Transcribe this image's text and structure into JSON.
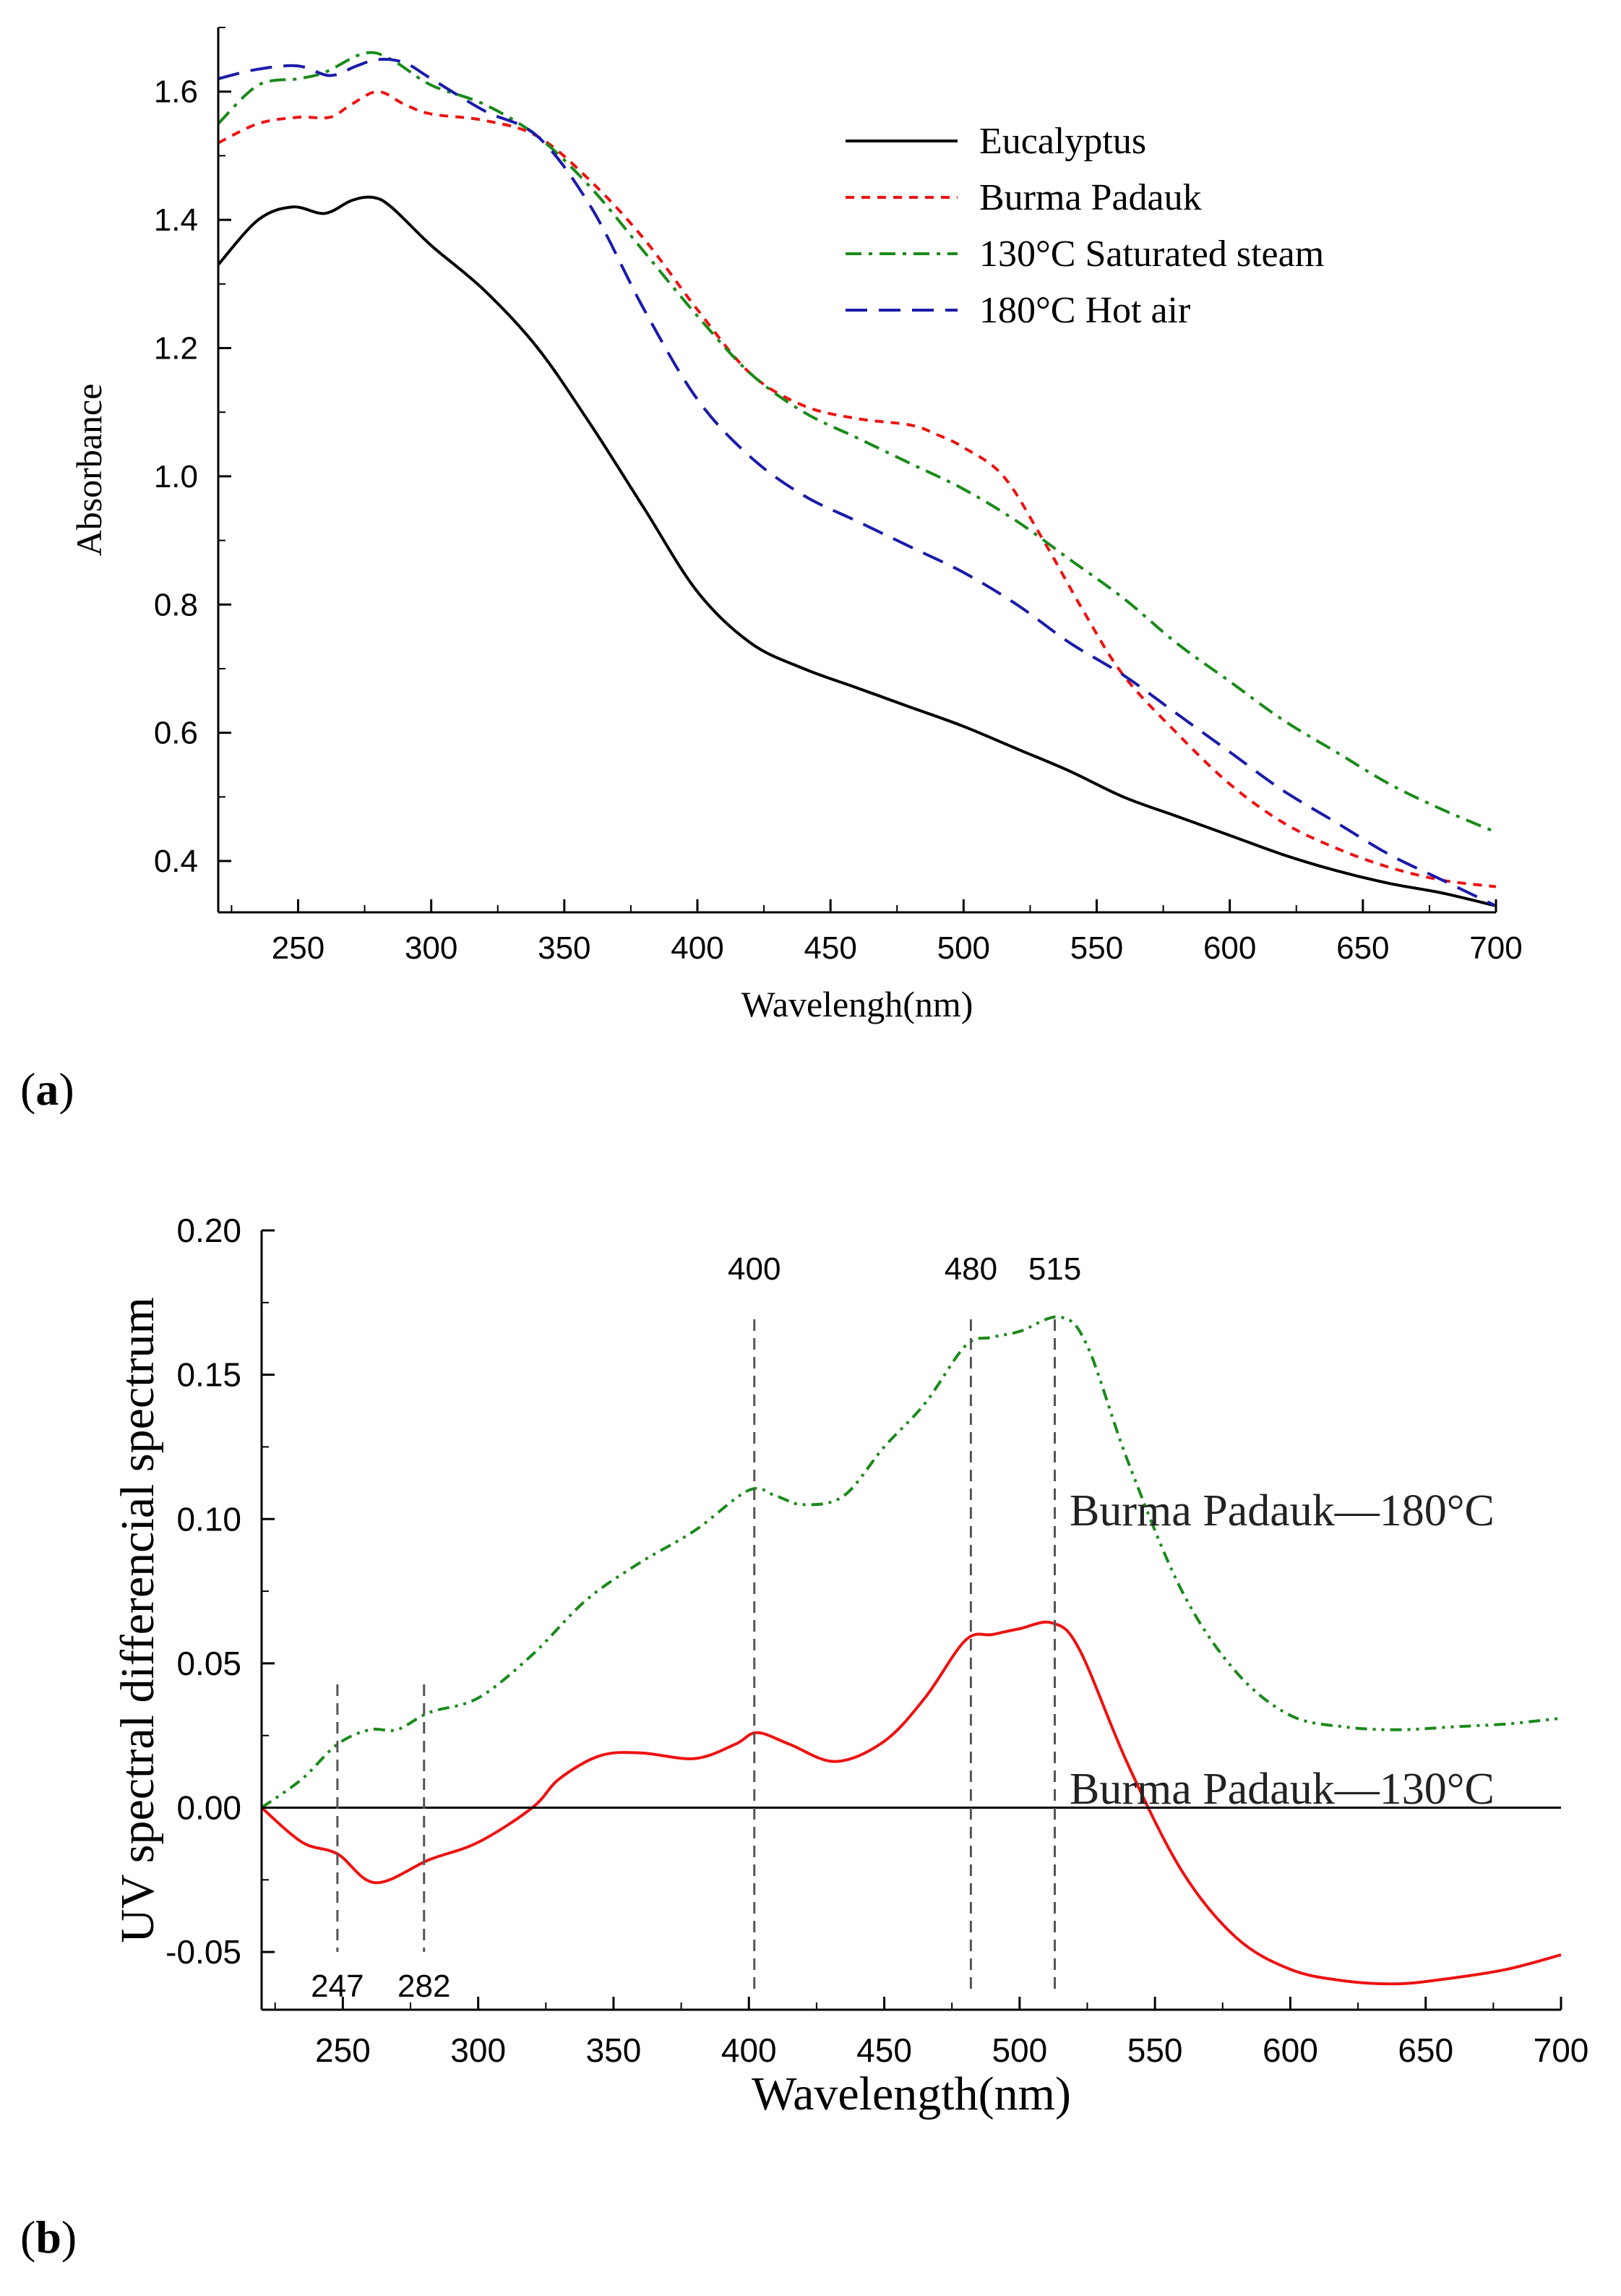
{
  "chart_data": [
    {
      "type": "line",
      "panel_label": "a",
      "xlabel": "Wavelengh(nm)",
      "ylabel": "Absorbance",
      "xlim": [
        220,
        700
      ],
      "ylim": [
        0.32,
        1.7
      ],
      "xticks": [
        250,
        300,
        350,
        400,
        450,
        500,
        550,
        600,
        650,
        700
      ],
      "yticks": [
        0.4,
        0.6,
        0.8,
        1.0,
        1.2,
        1.4,
        1.6
      ],
      "ytick_labels": [
        "0.4",
        "0.6",
        "0.8",
        "1.0",
        "1.2",
        "1.4",
        "1.6"
      ],
      "legend_position": "top-right",
      "series": [
        {
          "name": "Eucalyptus",
          "color": "#000000",
          "dash": "solid",
          "x": [
            220,
            235,
            248,
            260,
            270,
            278,
            285,
            300,
            320,
            340,
            360,
            380,
            400,
            420,
            440,
            460,
            480,
            500,
            520,
            540,
            560,
            580,
            600,
            620,
            640,
            660,
            680,
            700
          ],
          "y": [
            1.33,
            1.4,
            1.42,
            1.41,
            1.43,
            1.435,
            1.42,
            1.36,
            1.29,
            1.2,
            1.08,
            0.95,
            0.82,
            0.74,
            0.7,
            0.67,
            0.64,
            0.61,
            0.575,
            0.54,
            0.5,
            0.47,
            0.44,
            0.41,
            0.385,
            0.365,
            0.35,
            0.33
          ]
        },
        {
          "name": "Burma Padauk",
          "color": "#ee1111",
          "dash": "short-dash",
          "x": [
            220,
            235,
            250,
            262,
            270,
            280,
            290,
            300,
            320,
            340,
            360,
            380,
            400,
            420,
            440,
            460,
            480,
            490,
            500,
            515,
            530,
            545,
            560,
            580,
            600,
            620,
            640,
            660,
            680,
            700
          ],
          "y": [
            1.52,
            1.55,
            1.56,
            1.56,
            1.58,
            1.6,
            1.58,
            1.565,
            1.555,
            1.53,
            1.46,
            1.37,
            1.26,
            1.16,
            1.11,
            1.09,
            1.08,
            1.065,
            1.045,
            1.0,
            0.9,
            0.79,
            0.69,
            0.6,
            0.52,
            0.46,
            0.42,
            0.39,
            0.37,
            0.36
          ]
        },
        {
          "name": "130°C Saturated steam",
          "color": "#1a8a1a",
          "dash": "dash-dot",
          "x": [
            220,
            235,
            250,
            260,
            275,
            285,
            300,
            320,
            340,
            360,
            380,
            400,
            420,
            440,
            460,
            480,
            500,
            520,
            540,
            560,
            580,
            600,
            620,
            640,
            660,
            680,
            700
          ],
          "y": [
            1.55,
            1.61,
            1.62,
            1.63,
            1.66,
            1.65,
            1.61,
            1.58,
            1.53,
            1.45,
            1.35,
            1.25,
            1.16,
            1.1,
            1.06,
            1.02,
            0.98,
            0.93,
            0.87,
            0.81,
            0.74,
            0.68,
            0.62,
            0.57,
            0.52,
            0.48,
            0.445
          ]
        },
        {
          "name": "180°C Hot air",
          "color": "#1a1aaa",
          "dash": "long-dash",
          "x": [
            220,
            235,
            250,
            262,
            272,
            280,
            290,
            300,
            320,
            340,
            360,
            380,
            400,
            420,
            440,
            460,
            480,
            500,
            520,
            540,
            560,
            580,
            600,
            620,
            640,
            660,
            680,
            700
          ],
          "y": [
            1.62,
            1.635,
            1.64,
            1.625,
            1.64,
            1.65,
            1.645,
            1.62,
            1.57,
            1.53,
            1.42,
            1.26,
            1.12,
            1.03,
            0.97,
            0.93,
            0.89,
            0.85,
            0.8,
            0.74,
            0.69,
            0.63,
            0.57,
            0.51,
            0.46,
            0.41,
            0.37,
            0.33
          ]
        }
      ]
    },
    {
      "type": "line",
      "panel_label": "b",
      "xlabel": "Wavelength(nm)",
      "ylabel": "UV spectral differencial spectrum",
      "xlim": [
        220,
        700
      ],
      "ylim": [
        -0.07,
        0.2
      ],
      "xticks": [
        250,
        300,
        350,
        400,
        450,
        500,
        550,
        600,
        650,
        700
      ],
      "yticks": [
        -0.05,
        0.0,
        0.05,
        0.1,
        0.15,
        0.2
      ],
      "ytick_labels": [
        "-0.05",
        "0.00",
        "0.05",
        "0.10",
        "0.15",
        "0.20"
      ],
      "zero_line": true,
      "series": [
        {
          "name": "Burma Padauk—180°C",
          "color": "#1a8a1a",
          "dash": "dash-dot-dot",
          "x": [
            220,
            235,
            248,
            260,
            270,
            282,
            300,
            320,
            340,
            360,
            380,
            400,
            410,
            420,
            435,
            450,
            465,
            480,
            490,
            500,
            515,
            525,
            540,
            560,
            580,
            600,
            620,
            640,
            660,
            680,
            700
          ],
          "y": [
            0.0,
            0.01,
            0.022,
            0.027,
            0.027,
            0.033,
            0.038,
            0.053,
            0.072,
            0.085,
            0.096,
            0.11,
            0.108,
            0.105,
            0.108,
            0.125,
            0.14,
            0.16,
            0.163,
            0.165,
            0.17,
            0.16,
            0.12,
            0.075,
            0.047,
            0.032,
            0.028,
            0.027,
            0.028,
            0.029,
            0.031
          ]
        },
        {
          "name": "Burma Padauk—130°C",
          "color": "#ee1111",
          "dash": "solid",
          "x": [
            220,
            235,
            248,
            262,
            282,
            300,
            320,
            330,
            345,
            360,
            380,
            395,
            403,
            415,
            432,
            450,
            465,
            480,
            490,
            500,
            512,
            522,
            540,
            560,
            580,
            600,
            620,
            640,
            660,
            680,
            700
          ],
          "y": [
            0.0,
            -0.012,
            -0.016,
            -0.026,
            -0.018,
            -0.012,
            0.0,
            0.01,
            0.018,
            0.019,
            0.017,
            0.022,
            0.026,
            0.022,
            0.016,
            0.023,
            0.038,
            0.058,
            0.06,
            0.062,
            0.064,
            0.055,
            0.015,
            -0.022,
            -0.045,
            -0.056,
            -0.06,
            -0.061,
            -0.059,
            -0.056,
            -0.051
          ]
        }
      ],
      "annotations": {
        "upper_labels": [
          "400",
          "480",
          "515"
        ],
        "lower_labels": [
          "247",
          "282"
        ],
        "upper_x": [
          402,
          482,
          513
        ],
        "lower_x": [
          248,
          280
        ]
      }
    }
  ]
}
